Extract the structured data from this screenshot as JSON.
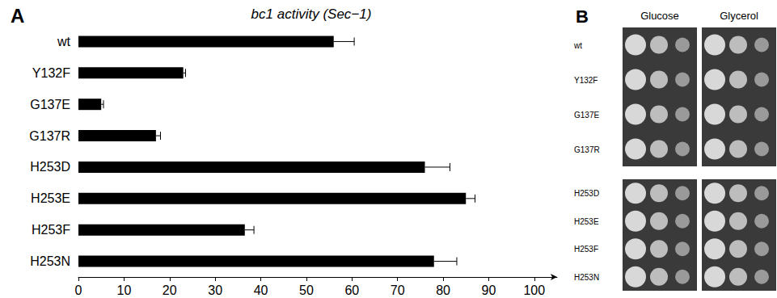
{
  "chart_data": {
    "type": "bar",
    "orientation": "horizontal",
    "panel": "A",
    "title": "bc1 activity (Sec−1)",
    "categories": [
      "wt",
      "Y132F",
      "G137E",
      "G137R",
      "H253D",
      "H253E",
      "H253F",
      "H253N"
    ],
    "values": [
      56,
      23,
      5,
      17,
      76,
      85,
      36.5,
      78
    ],
    "errors": [
      4.5,
      0.5,
      0.5,
      1,
      5.5,
      2,
      2,
      5
    ],
    "color": "#000000",
    "xlim": [
      0,
      105
    ],
    "xticks": [
      0,
      10,
      20,
      30,
      40,
      50,
      60,
      70,
      80,
      90,
      100
    ],
    "grid": false
  },
  "panel_b": {
    "label": "B",
    "conditions": [
      "Glucose",
      "Glycerol"
    ],
    "groups": [
      [
        "wt",
        "Y132F",
        "G137E",
        "G137R"
      ],
      [
        "H253D",
        "H253E",
        "H253F",
        "H253N"
      ]
    ]
  }
}
